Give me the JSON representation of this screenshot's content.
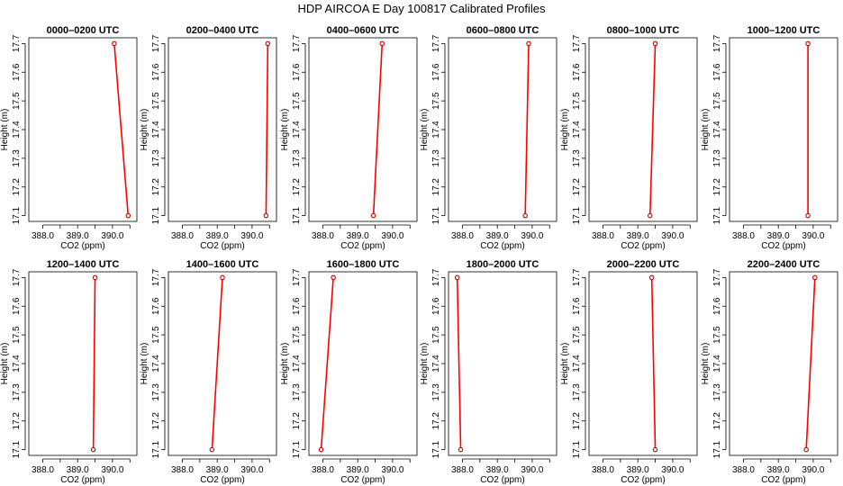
{
  "figure_title": "HDP AIRCOA E  Day 100817  Calibrated Profiles",
  "chart_data": {
    "type": "line",
    "xlabel": "CO2 (ppm)",
    "ylabel": "Height (m)",
    "xlim": [
      387.6,
      390.7
    ],
    "ylim": [
      17.08,
      17.72
    ],
    "xticks": [
      "388.0",
      "389.0",
      "390.0"
    ],
    "yticks": [
      "17.1",
      "17.2",
      "17.3",
      "17.4",
      "17.5",
      "17.6",
      "17.7"
    ],
    "line_color": "#ff0000",
    "marker_color": "#cc0000",
    "panels": [
      {
        "title": "0000–0200 UTC",
        "points": [
          {
            "x": 390.45,
            "y": 17.1
          },
          {
            "x": 390.05,
            "y": 17.7
          }
        ]
      },
      {
        "title": "0200–0400 UTC",
        "points": [
          {
            "x": 390.4,
            "y": 17.1
          },
          {
            "x": 390.45,
            "y": 17.7
          }
        ]
      },
      {
        "title": "0400–0600 UTC",
        "points": [
          {
            "x": 389.45,
            "y": 17.1
          },
          {
            "x": 389.7,
            "y": 17.7
          }
        ]
      },
      {
        "title": "0600–0800 UTC",
        "points": [
          {
            "x": 389.8,
            "y": 17.1
          },
          {
            "x": 389.9,
            "y": 17.7
          }
        ]
      },
      {
        "title": "0800–1000 UTC",
        "points": [
          {
            "x": 389.35,
            "y": 17.1
          },
          {
            "x": 389.5,
            "y": 17.7
          }
        ]
      },
      {
        "title": "1000–1200 UTC",
        "points": [
          {
            "x": 389.85,
            "y": 17.1
          },
          {
            "x": 389.85,
            "y": 17.7
          }
        ]
      },
      {
        "title": "1200–1400 UTC",
        "points": [
          {
            "x": 389.45,
            "y": 17.1
          },
          {
            "x": 389.5,
            "y": 17.7
          }
        ]
      },
      {
        "title": "1400–1600 UTC",
        "points": [
          {
            "x": 388.85,
            "y": 17.1
          },
          {
            "x": 389.15,
            "y": 17.7
          }
        ]
      },
      {
        "title": "1600–1800 UTC",
        "points": [
          {
            "x": 387.95,
            "y": 17.1
          },
          {
            "x": 388.3,
            "y": 17.7
          }
        ]
      },
      {
        "title": "1800–2000 UTC",
        "points": [
          {
            "x": 387.95,
            "y": 17.1
          },
          {
            "x": 387.85,
            "y": 17.7
          }
        ]
      },
      {
        "title": "2000–2200 UTC",
        "points": [
          {
            "x": 389.5,
            "y": 17.1
          },
          {
            "x": 389.4,
            "y": 17.7
          }
        ]
      },
      {
        "title": "2200–2400 UTC",
        "points": [
          {
            "x": 389.8,
            "y": 17.1
          },
          {
            "x": 390.05,
            "y": 17.7
          }
        ]
      }
    ]
  }
}
